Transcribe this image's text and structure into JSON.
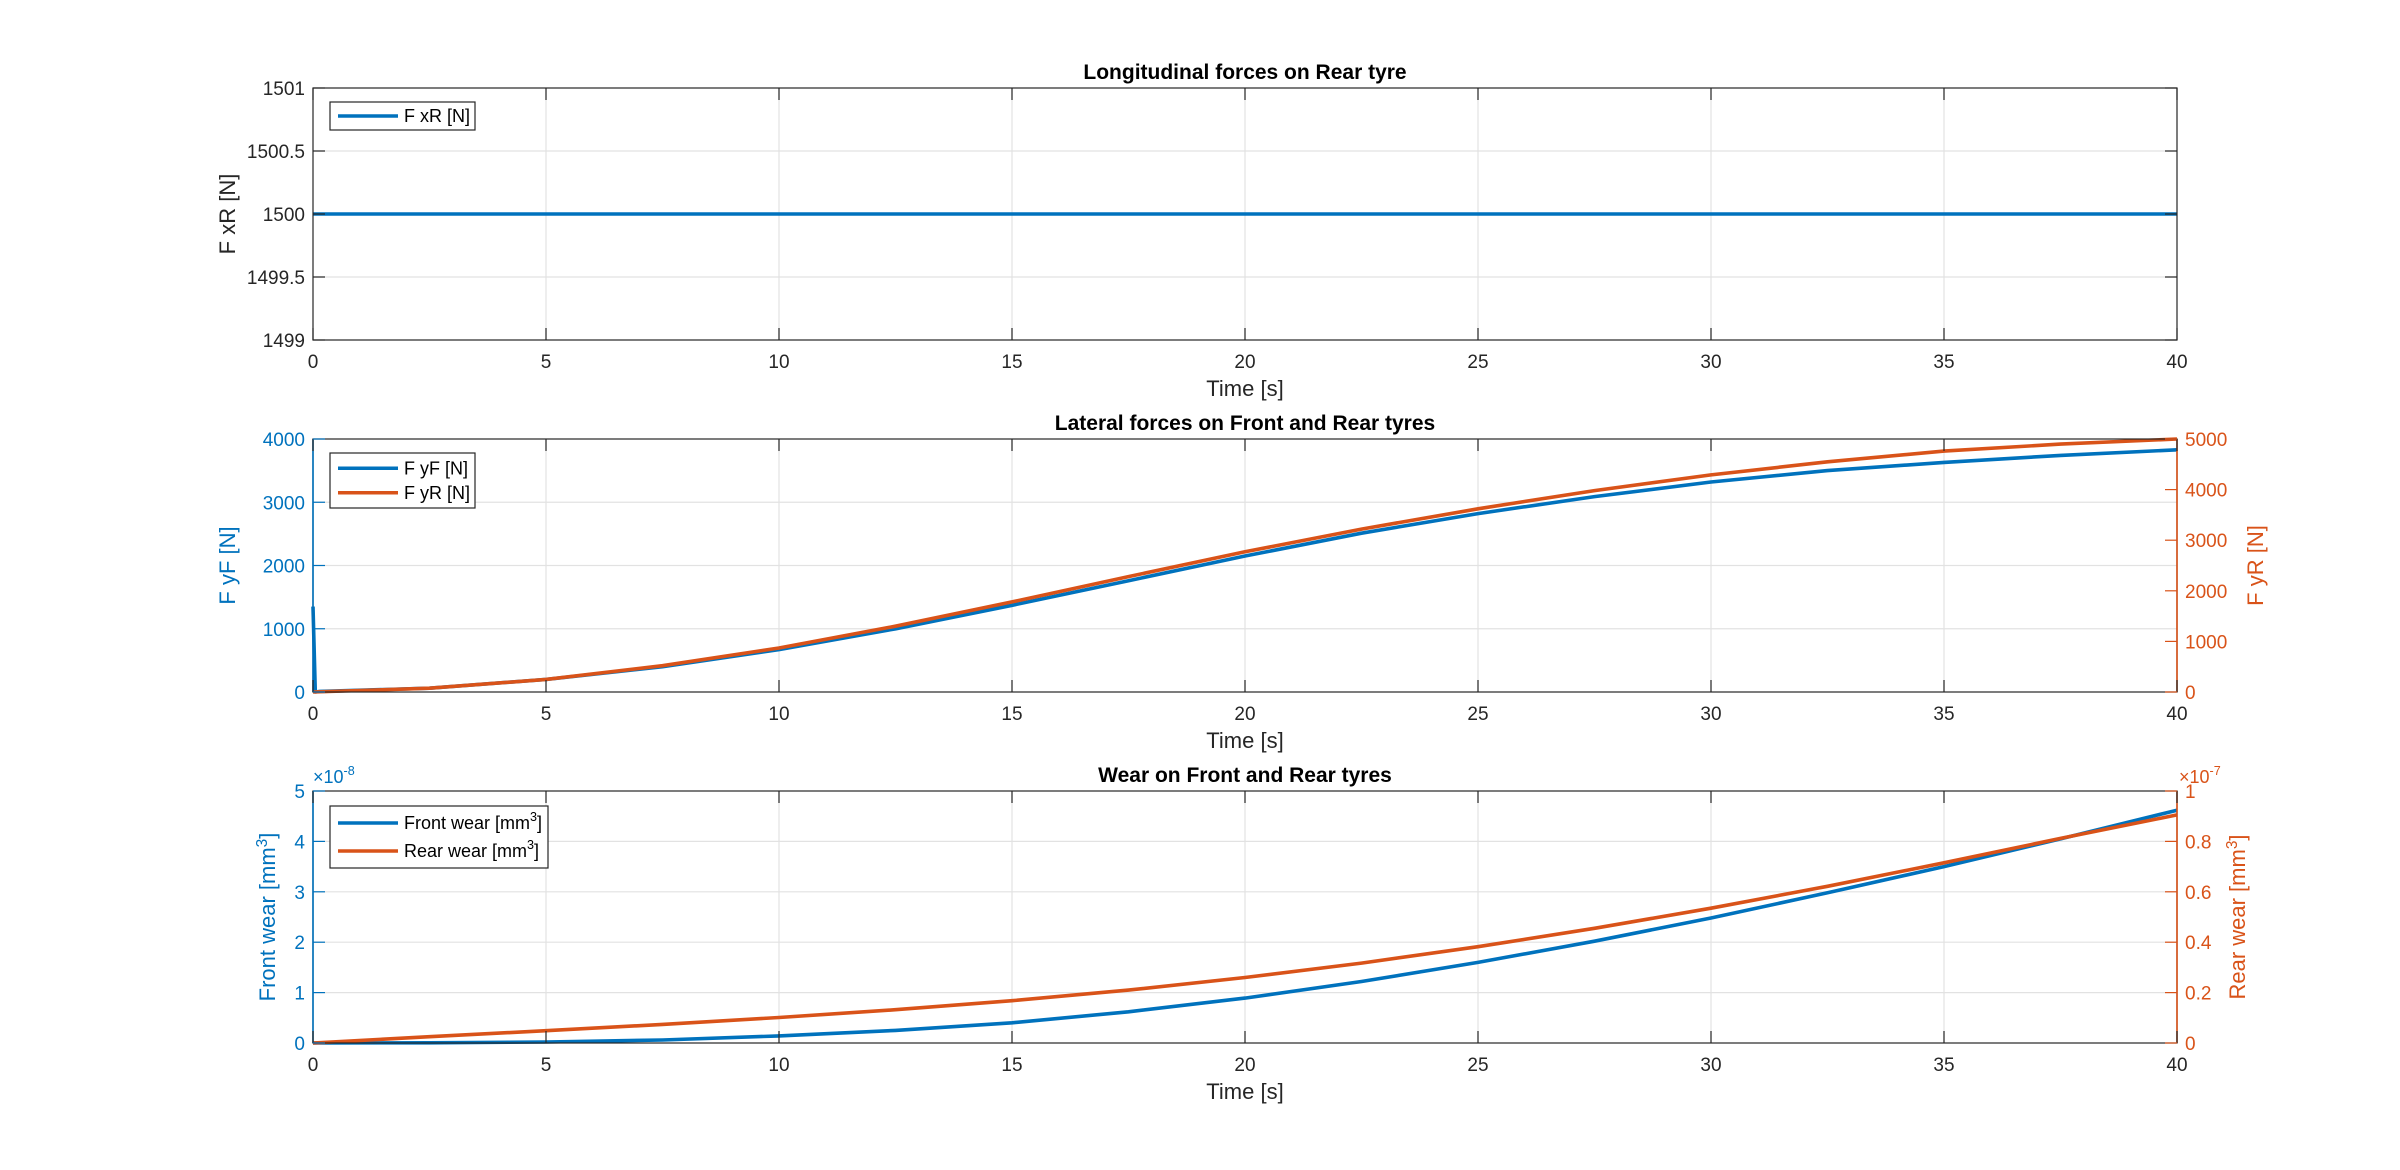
{
  "chart_data": [
    {
      "type": "line",
      "title": "Longitudinal forces on Rear tyre",
      "xlabel": "Time [s]",
      "xlim": [
        0,
        40
      ],
      "xticks": [
        0,
        5,
        10,
        15,
        20,
        25,
        30,
        35,
        40
      ],
      "xtick_labels": [
        "0",
        "5",
        "10",
        "15",
        "20",
        "25",
        "30",
        "35",
        "40"
      ],
      "grid": true,
      "legend_location": "top-left",
      "left_axis": {
        "label": "F xR [N]",
        "ylim": [
          1499,
          1501
        ],
        "yticks": [
          1499,
          1499.5,
          1500,
          1500.5,
          1501
        ],
        "ytick_labels": [
          "1499",
          "1499.5",
          "1500",
          "1500.5",
          "1501"
        ],
        "color": "#262626"
      },
      "series": [
        {
          "name": "F xR [N]",
          "axis": "left",
          "color": "#0072BD",
          "x": [
            0,
            40
          ],
          "y": [
            1500,
            1500
          ]
        }
      ]
    },
    {
      "type": "line",
      "title": "Lateral forces on Front and Rear tyres",
      "xlabel": "Time [s]",
      "xlim": [
        0,
        40
      ],
      "xticks": [
        0,
        5,
        10,
        15,
        20,
        25,
        30,
        35,
        40
      ],
      "xtick_labels": [
        "0",
        "5",
        "10",
        "15",
        "20",
        "25",
        "30",
        "35",
        "40"
      ],
      "grid": true,
      "legend_location": "top-left",
      "left_axis": {
        "label": "F yF [N]",
        "ylim": [
          0,
          4000
        ],
        "yticks": [
          0,
          1000,
          2000,
          3000,
          4000
        ],
        "ytick_labels": [
          "0",
          "1000",
          "2000",
          "3000",
          "4000"
        ],
        "color": "#0072BD"
      },
      "right_axis": {
        "label": "F yR [N]",
        "ylim": [
          0,
          5000
        ],
        "yticks": [
          0,
          1000,
          2000,
          3000,
          4000,
          5000
        ],
        "ytick_labels": [
          "0",
          "1000",
          "2000",
          "3000",
          "4000",
          "5000"
        ],
        "color": "#D95319"
      },
      "series": [
        {
          "name": "F yF [N]",
          "axis": "left",
          "color": "#0072BD",
          "x": [
            0,
            0.05,
            0.15,
            2.5,
            5,
            7.5,
            10,
            12.5,
            15,
            17.5,
            20,
            22.5,
            25,
            27.5,
            30,
            32.5,
            35,
            37.5,
            40
          ],
          "y": [
            1350,
            0,
            10,
            60,
            200,
            400,
            670,
            1000,
            1370,
            1760,
            2150,
            2510,
            2820,
            3090,
            3320,
            3500,
            3630,
            3740,
            3830
          ]
        },
        {
          "name": "F yR [N]",
          "axis": "right",
          "color": "#D95319",
          "x": [
            0,
            2.5,
            5,
            7.5,
            10,
            12.5,
            15,
            17.5,
            20,
            22.5,
            25,
            27.5,
            30,
            32.5,
            35,
            37.5,
            40
          ],
          "y": [
            0,
            75,
            250,
            520,
            870,
            1300,
            1780,
            2280,
            2770,
            3220,
            3620,
            3980,
            4290,
            4550,
            4760,
            4900,
            5000
          ]
        }
      ]
    },
    {
      "type": "line",
      "title": "Wear on Front and Rear tyres",
      "xlabel": "Time [s]",
      "xlim": [
        0,
        40
      ],
      "xticks": [
        0,
        5,
        10,
        15,
        20,
        25,
        30,
        35,
        40
      ],
      "xtick_labels": [
        "0",
        "5",
        "10",
        "15",
        "20",
        "25",
        "30",
        "35",
        "40"
      ],
      "grid": true,
      "legend_location": "top-left",
      "left_axis": {
        "label": "Front wear [mm",
        "label_superscript": "3",
        "label_suffix": "]",
        "ylim": [
          0,
          5e-08
        ],
        "yticks": [
          0,
          1e-08,
          2e-08,
          3e-08,
          4e-08,
          5e-08
        ],
        "ytick_labels": [
          "0",
          "1",
          "2",
          "3",
          "4",
          "5"
        ],
        "exponent_base": "×10",
        "exponent_power": "-8",
        "color": "#0072BD"
      },
      "right_axis": {
        "label": "Rear wear [mm",
        "label_superscript": "3",
        "label_suffix": "]",
        "ylim": [
          0,
          1e-07
        ],
        "yticks": [
          0,
          2e-08,
          4e-08,
          6e-08,
          8e-08,
          1e-07
        ],
        "ytick_labels": [
          "0",
          "0.2",
          "0.4",
          "0.6",
          "0.8",
          "1"
        ],
        "exponent_base": "×10",
        "exponent_power": "-7",
        "color": "#D95319"
      },
      "series": [
        {
          "name": "Front wear [mm3]",
          "legend_label": "Front wear [mm",
          "legend_superscript": "3",
          "legend_suffix": "]",
          "axis": "left",
          "color": "#0072BD",
          "x": [
            0,
            2.5,
            5,
            7.5,
            10,
            12.5,
            15,
            17.5,
            20,
            22.5,
            25,
            27.5,
            30,
            32.5,
            35,
            37.5,
            40
          ],
          "y": [
            0,
            3e-11,
            2e-10,
            6e-10,
            1.4e-09,
            2.5e-09,
            4e-09,
            6.2e-09,
            8.9e-09,
            1.22e-08,
            1.6e-08,
            2.02e-08,
            2.48e-08,
            2.98e-08,
            3.5e-08,
            4.05e-08,
            4.62e-08
          ]
        },
        {
          "name": "Rear wear [mm3]",
          "legend_label": "Rear wear [mm",
          "legend_superscript": "3",
          "legend_suffix": "]",
          "axis": "right",
          "color": "#D95319",
          "x": [
            0,
            2.5,
            5,
            7.5,
            10,
            12.5,
            15,
            17.5,
            20,
            22.5,
            25,
            27.5,
            30,
            32.5,
            35,
            37.5,
            40
          ],
          "y": [
            0,
            2.5e-09,
            4.9e-09,
            7.4e-09,
            1.01e-08,
            1.32e-08,
            1.68e-08,
            2.1e-08,
            2.6e-08,
            3.17e-08,
            3.82e-08,
            4.55e-08,
            5.35e-08,
            6.22e-08,
            7.15e-08,
            8.12e-08,
            9.05e-08
          ]
        }
      ]
    }
  ]
}
